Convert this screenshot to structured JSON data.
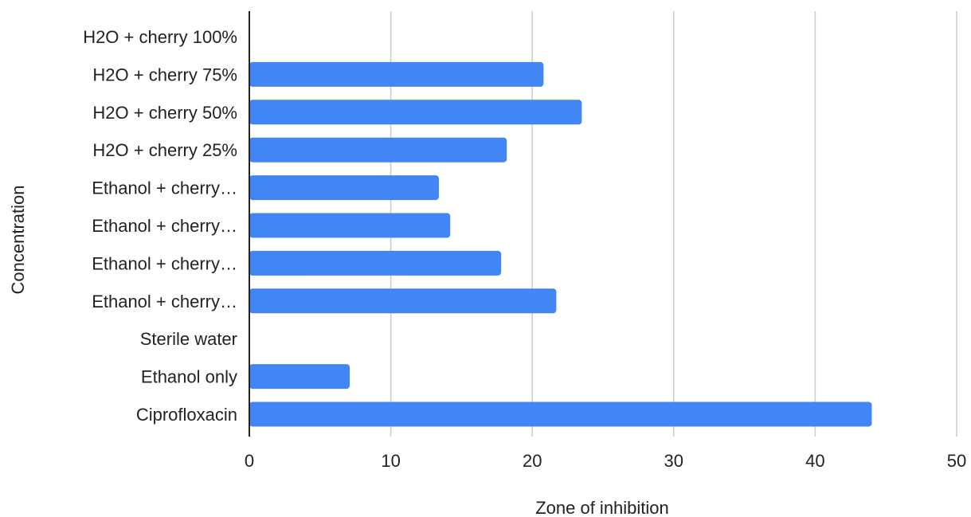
{
  "chart_data": {
    "type": "bar",
    "orientation": "horizontal",
    "title": "",
    "xlabel": "Zone of inhibition",
    "ylabel": "Concentration",
    "xlim": [
      0,
      50
    ],
    "xticks": [
      0,
      10,
      20,
      30,
      40,
      50
    ],
    "grid": true,
    "legend": "none",
    "bar_color": "#4285f4",
    "gridline_color": "#cccccc",
    "categories": [
      "H2O + cherry 100%",
      "H2O + cherry 75%",
      "H2O + cherry 50%",
      "H2O + cherry 25%",
      "Ethanol + cherry…",
      "Ethanol + cherry…",
      "Ethanol + cherry…",
      "Ethanol + cherry…",
      "Sterile water",
      "Ethanol only",
      "Ciprofloxacin"
    ],
    "values": [
      0,
      20.8,
      23.5,
      18.2,
      13.4,
      14.2,
      17.8,
      21.7,
      0,
      7.1,
      44
    ]
  }
}
